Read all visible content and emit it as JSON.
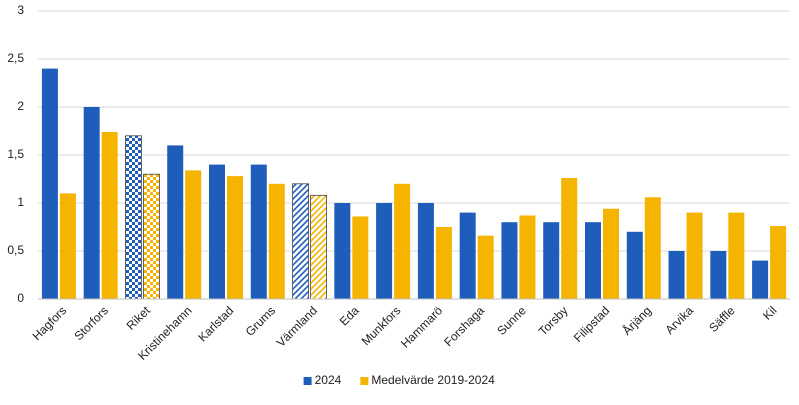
{
  "chart_data": {
    "type": "bar",
    "categories": [
      "Hagfors",
      "Storfors",
      "Riket",
      "Kristinehamn",
      "Karlstad",
      "Grums",
      "Värmland",
      "Eda",
      "Munkfors",
      "Hammarö",
      "Forshaga",
      "Sunne",
      "Torsby",
      "Filipstad",
      "Årjäng",
      "Arvika",
      "Säffle",
      "Kil"
    ],
    "series": [
      {
        "name": "2024",
        "color": "#1f5dbb",
        "values": [
          2.4,
          2.0,
          1.7,
          1.6,
          1.4,
          1.4,
          1.2,
          1.0,
          1.0,
          1.0,
          0.9,
          0.8,
          0.8,
          0.8,
          0.7,
          0.5,
          0.5,
          0.4
        ]
      },
      {
        "name": "Medelvärde 2019-2024",
        "color": "#f5b400",
        "values": [
          1.1,
          1.74,
          1.3,
          1.34,
          1.28,
          1.2,
          1.08,
          0.86,
          1.2,
          0.75,
          0.66,
          0.87,
          1.26,
          0.94,
          1.06,
          0.9,
          0.9,
          0.76
        ]
      }
    ],
    "highlight": [
      {
        "category": "Riket",
        "pattern": "checker"
      },
      {
        "category": "Värmland",
        "pattern": "hatch"
      }
    ],
    "ylim": [
      0,
      3
    ],
    "yticks": [
      0,
      {
        "value": 0.5,
        "label": "0,5"
      },
      1,
      {
        "value": 1.5,
        "label": "1,5"
      },
      2,
      {
        "value": 2.5,
        "label": "2,5"
      },
      3
    ],
    "grid": true,
    "legend": "bottom"
  }
}
